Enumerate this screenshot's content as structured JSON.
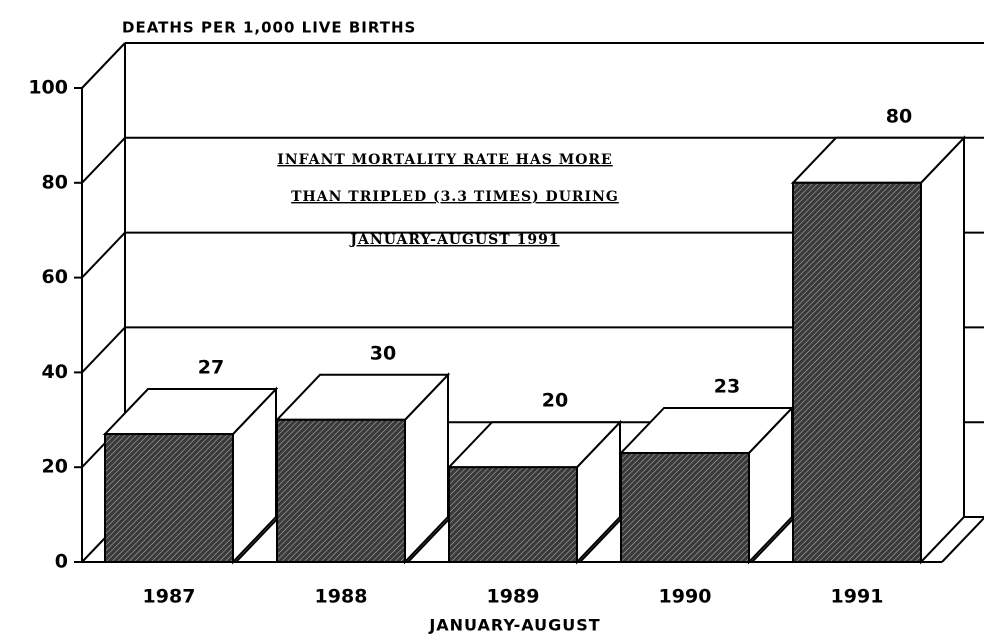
{
  "chart_data": {
    "type": "bar",
    "title": "DEATHS PER 1,000 LIVE BIRTHS",
    "xlabel": "JANUARY-AUGUST",
    "annotations": [
      "INFANT MORTALITY RATE HAS MORE",
      "THAN TRIPLED (3.3 TIMES) DURING",
      "JANUARY-AUGUST 1991"
    ],
    "categories": [
      "1987",
      "1988",
      "1989",
      "1990",
      "1991"
    ],
    "values": [
      27,
      30,
      20,
      23,
      80
    ],
    "color": "#3a3a3a",
    "ylim": [
      0,
      100
    ],
    "yticks": [
      0,
      20,
      40,
      60,
      80,
      100
    ],
    "grid": true
  }
}
